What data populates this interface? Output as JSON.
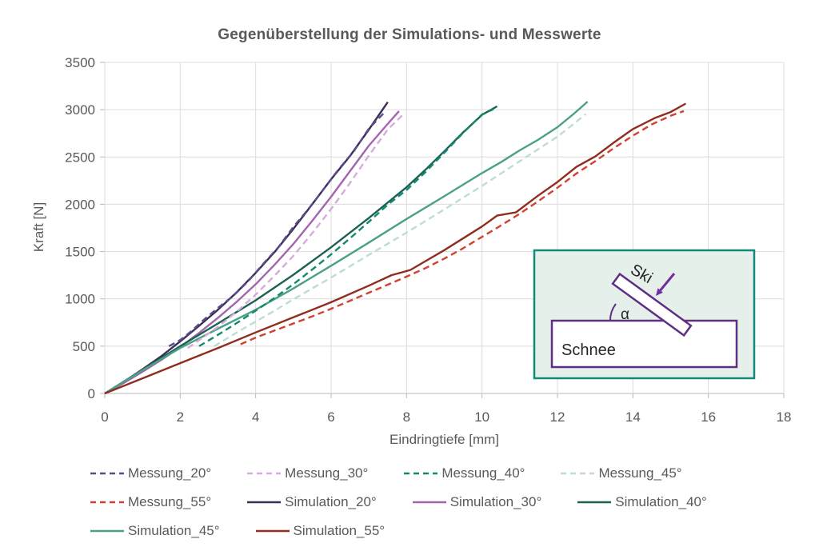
{
  "chart_data": {
    "type": "line",
    "title": "Gegenüberstellung der Simulations- und Messwerte",
    "xlabel": "Eindringtiefe [mm]",
    "ylabel": "Kraft [N]",
    "xlim": [
      0,
      18
    ],
    "ylim": [
      0,
      3500
    ],
    "xticks": [
      0,
      2,
      4,
      6,
      8,
      10,
      12,
      14,
      16,
      18
    ],
    "yticks": [
      0,
      500,
      1000,
      1500,
      2000,
      2500,
      3000,
      3500
    ],
    "grid": true,
    "legend_position": "bottom",
    "series": [
      {
        "name": "Simulation_20°",
        "color": "#3b2d55",
        "style": "solid",
        "points": [
          [
            0,
            0
          ],
          [
            0.5,
            120
          ],
          [
            1,
            255
          ],
          [
            1.5,
            395
          ],
          [
            2,
            550
          ],
          [
            2.5,
            715
          ],
          [
            3,
            885
          ],
          [
            3.5,
            1070
          ],
          [
            4,
            1275
          ],
          [
            4.5,
            1495
          ],
          [
            5,
            1740
          ],
          [
            5.5,
            2000
          ],
          [
            6,
            2265
          ],
          [
            6.5,
            2510
          ],
          [
            7,
            2790
          ],
          [
            7.5,
            3080
          ]
        ]
      },
      {
        "name": "Simulation_30°",
        "color": "#a365ad",
        "style": "solid",
        "points": [
          [
            0,
            0
          ],
          [
            0.5,
            110
          ],
          [
            1,
            230
          ],
          [
            1.5,
            355
          ],
          [
            2,
            490
          ],
          [
            2.5,
            640
          ],
          [
            3,
            800
          ],
          [
            3.5,
            970
          ],
          [
            4,
            1155
          ],
          [
            4.5,
            1360
          ],
          [
            5,
            1580
          ],
          [
            5.5,
            1825
          ],
          [
            6,
            2080
          ],
          [
            6.5,
            2350
          ],
          [
            7,
            2620
          ],
          [
            7.5,
            2850
          ],
          [
            7.8,
            2985
          ]
        ]
      },
      {
        "name": "Simulation_40°",
        "color": "#1b6154",
        "style": "solid",
        "points": [
          [
            0,
            0
          ],
          [
            1,
            250
          ],
          [
            2,
            500
          ],
          [
            3,
            740
          ],
          [
            4,
            985
          ],
          [
            5,
            1255
          ],
          [
            6,
            1545
          ],
          [
            7,
            1855
          ],
          [
            8,
            2180
          ],
          [
            8.5,
            2365
          ],
          [
            9,
            2560
          ],
          [
            9.5,
            2760
          ],
          [
            10,
            2945
          ],
          [
            10.4,
            3035
          ]
        ]
      },
      {
        "name": "Simulation_45°",
        "color": "#4ba184",
        "style": "solid",
        "points": [
          [
            0,
            0
          ],
          [
            1,
            245
          ],
          [
            2,
            480
          ],
          [
            3,
            685
          ],
          [
            4,
            885
          ],
          [
            5,
            1110
          ],
          [
            6,
            1350
          ],
          [
            7,
            1595
          ],
          [
            8,
            1845
          ],
          [
            9,
            2085
          ],
          [
            10,
            2330
          ],
          [
            10.5,
            2445
          ],
          [
            11,
            2570
          ],
          [
            11.5,
            2685
          ],
          [
            12,
            2815
          ],
          [
            12.4,
            2945
          ],
          [
            12.8,
            3085
          ]
        ]
      },
      {
        "name": "Simulation_55°",
        "color": "#8f2d1f",
        "style": "solid",
        "points": [
          [
            0,
            0
          ],
          [
            1,
            160
          ],
          [
            2,
            320
          ],
          [
            3,
            480
          ],
          [
            4,
            645
          ],
          [
            5,
            805
          ],
          [
            6,
            965
          ],
          [
            7,
            1140
          ],
          [
            7.6,
            1250
          ],
          [
            8.1,
            1305
          ],
          [
            9,
            1515
          ],
          [
            10,
            1765
          ],
          [
            10.4,
            1880
          ],
          [
            10.9,
            1915
          ],
          [
            11.5,
            2095
          ],
          [
            12,
            2235
          ],
          [
            12.5,
            2395
          ],
          [
            13,
            2505
          ],
          [
            13.5,
            2655
          ],
          [
            14,
            2795
          ],
          [
            14.6,
            2915
          ],
          [
            15,
            2975
          ],
          [
            15.4,
            3065
          ]
        ]
      },
      {
        "name": "Messung_20°",
        "color": "#5d4a8c",
        "style": "dashed",
        "points": [
          [
            1.7,
            500
          ],
          [
            2,
            565
          ],
          [
            2.3,
            660
          ],
          [
            2.6,
            770
          ],
          [
            3,
            905
          ],
          [
            3.4,
            1030
          ],
          [
            3.8,
            1185
          ],
          [
            4.2,
            1370
          ],
          [
            4.6,
            1545
          ],
          [
            5,
            1760
          ],
          [
            5.4,
            1950
          ],
          [
            5.8,
            2160
          ],
          [
            6.2,
            2370
          ],
          [
            6.6,
            2560
          ],
          [
            7,
            2800
          ],
          [
            7.45,
            2985
          ]
        ]
      },
      {
        "name": "Messung_30°",
        "color": "#d7abdc",
        "style": "dashed",
        "points": [
          [
            2.2,
            480
          ],
          [
            2.6,
            590
          ],
          [
            3,
            705
          ],
          [
            3.5,
            865
          ],
          [
            4,
            1045
          ],
          [
            4.5,
            1245
          ],
          [
            5,
            1455
          ],
          [
            5.5,
            1695
          ],
          [
            6,
            1950
          ],
          [
            6.5,
            2225
          ],
          [
            7,
            2515
          ],
          [
            7.5,
            2790
          ],
          [
            7.9,
            2945
          ]
        ]
      },
      {
        "name": "Messung_40°",
        "color": "#108a71",
        "style": "dashed",
        "points": [
          [
            2.5,
            500
          ],
          [
            3,
            620
          ],
          [
            3.5,
            745
          ],
          [
            4,
            875
          ],
          [
            4.5,
            1010
          ],
          [
            5,
            1155
          ],
          [
            5.5,
            1310
          ],
          [
            6,
            1470
          ],
          [
            6.5,
            1640
          ],
          [
            7,
            1815
          ],
          [
            7.5,
            1995
          ],
          [
            8,
            2150
          ],
          [
            8.5,
            2340
          ],
          [
            9,
            2545
          ],
          [
            9.5,
            2755
          ],
          [
            10,
            2950
          ],
          [
            10.3,
            3005
          ]
        ]
      },
      {
        "name": "Messung_45°",
        "color": "#bedecd",
        "style": "dashed",
        "points": [
          [
            2.9,
            500
          ],
          [
            3.5,
            645
          ],
          [
            4,
            760
          ],
          [
            4.5,
            875
          ],
          [
            5,
            995
          ],
          [
            6,
            1225
          ],
          [
            7,
            1465
          ],
          [
            8,
            1700
          ],
          [
            9,
            1945
          ],
          [
            10,
            2195
          ],
          [
            11,
            2455
          ],
          [
            12,
            2715
          ],
          [
            12.45,
            2855
          ],
          [
            12.75,
            2955
          ]
        ]
      },
      {
        "name": "Messung_55°",
        "color": "#d2412f",
        "style": "dashed",
        "points": [
          [
            3.6,
            520
          ],
          [
            4,
            590
          ],
          [
            4.5,
            665
          ],
          [
            5,
            740
          ],
          [
            5.5,
            815
          ],
          [
            6,
            895
          ],
          [
            6.5,
            980
          ],
          [
            7,
            1065
          ],
          [
            7.5,
            1150
          ],
          [
            8,
            1235
          ],
          [
            8.5,
            1325
          ],
          [
            9,
            1425
          ],
          [
            9.5,
            1535
          ],
          [
            10,
            1655
          ],
          [
            10.5,
            1775
          ],
          [
            11,
            1900
          ],
          [
            11.5,
            2035
          ],
          [
            12,
            2175
          ],
          [
            12.5,
            2325
          ],
          [
            13,
            2455
          ],
          [
            13.5,
            2595
          ],
          [
            14,
            2725
          ],
          [
            14.5,
            2845
          ],
          [
            15,
            2935
          ],
          [
            15.35,
            2985
          ]
        ]
      }
    ]
  },
  "legend": {
    "rows": [
      [
        "Messung_20°",
        "Messung_30°",
        "Messung_40°",
        "Messung_45°"
      ],
      [
        "Messung_55°",
        "Simulation_20°",
        "Simulation_30°",
        "Simulation_40°"
      ],
      [
        "Simulation_45°",
        "Simulation_55°"
      ]
    ]
  },
  "inset": {
    "ski_label": "Ski",
    "snow_label": "Schnee",
    "angle_label": "α",
    "background": "#e6f0ea",
    "border_color": "#13897b",
    "shape_color": "#5e2f82",
    "arrow_color": "#7030a0",
    "text_color": "#262626"
  }
}
